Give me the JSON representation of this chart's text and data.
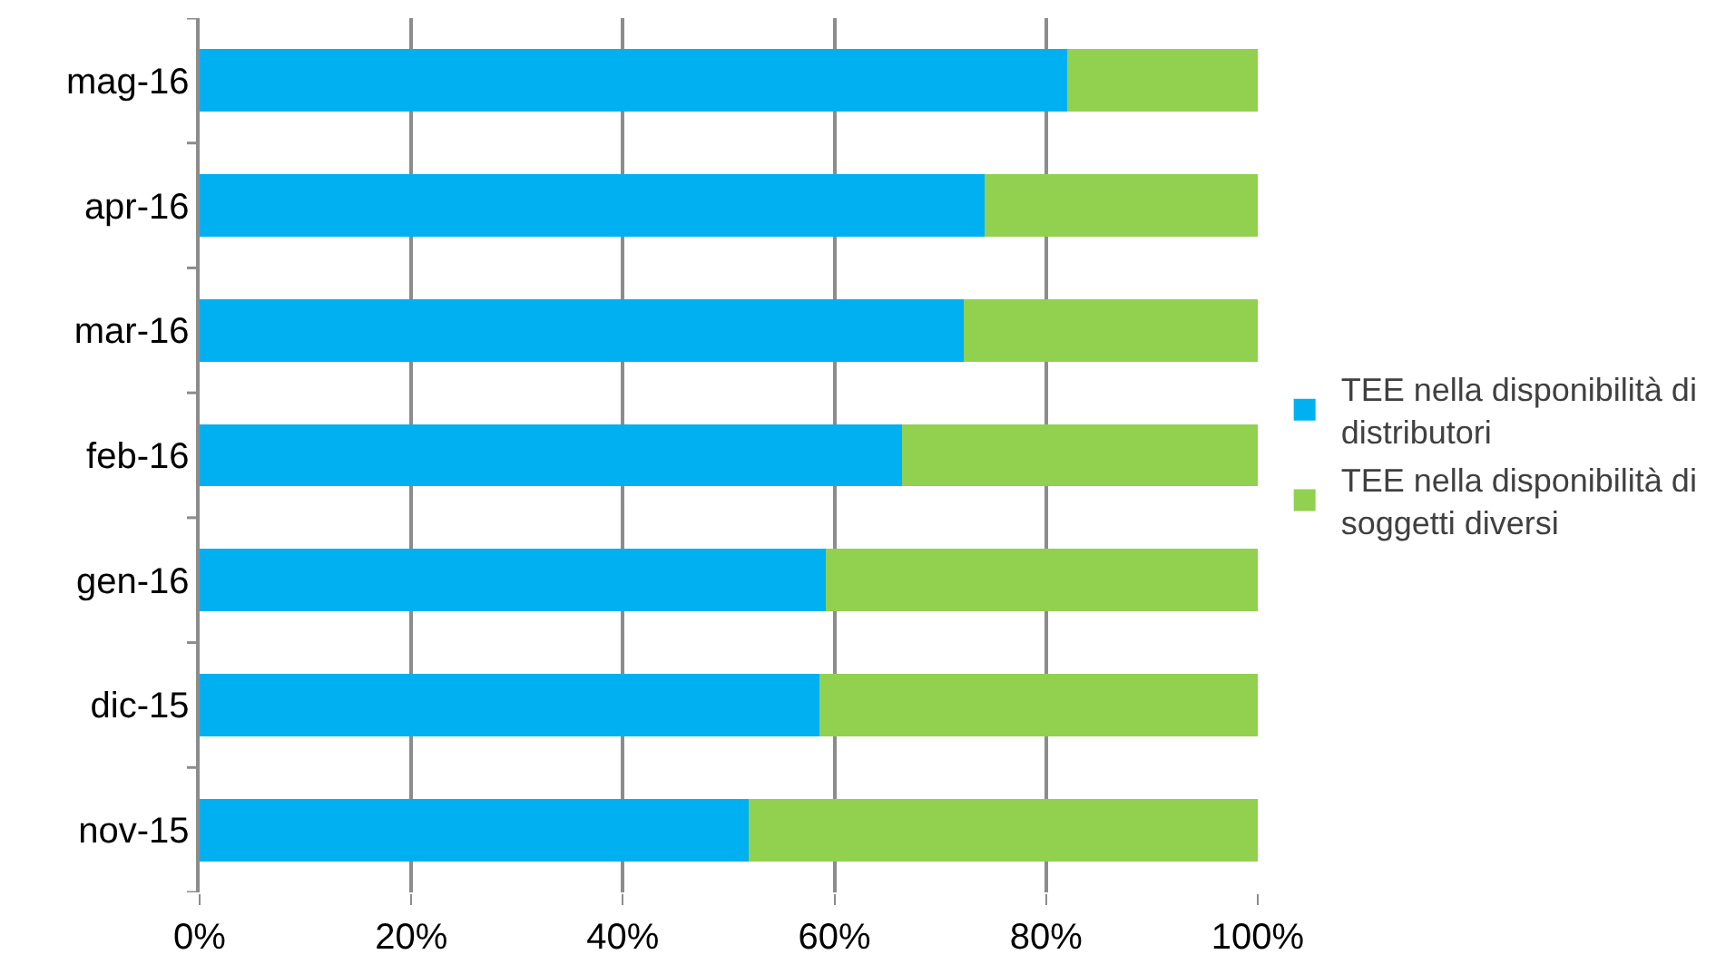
{
  "chart_data": {
    "type": "bar",
    "orientation": "horizontal",
    "stacked": true,
    "categories": [
      "mag-16",
      "apr-16",
      "mar-16",
      "feb-16",
      "gen-16",
      "dic-15",
      "nov-15"
    ],
    "series": [
      {
        "name": "TEE nella disponibilità di distributori",
        "color": "#00b0f0",
        "values": [
          82.0,
          74.2,
          72.2,
          66.4,
          59.2,
          58.6,
          51.9
        ]
      },
      {
        "name": "TEE nella disponibilità di soggetti diversi",
        "color": "#92d050",
        "values": [
          18.0,
          25.8,
          27.8,
          33.6,
          40.8,
          41.4,
          48.1
        ]
      }
    ],
    "xlim": [
      0,
      100
    ],
    "xticks": [
      {
        "value": 0,
        "label": "0%"
      },
      {
        "value": 20,
        "label": "20%"
      },
      {
        "value": 40,
        "label": "40%"
      },
      {
        "value": 60,
        "label": "60%"
      },
      {
        "value": 80,
        "label": "80%"
      },
      {
        "value": 100,
        "label": "100%"
      }
    ],
    "grid": "x",
    "legend": "right"
  }
}
